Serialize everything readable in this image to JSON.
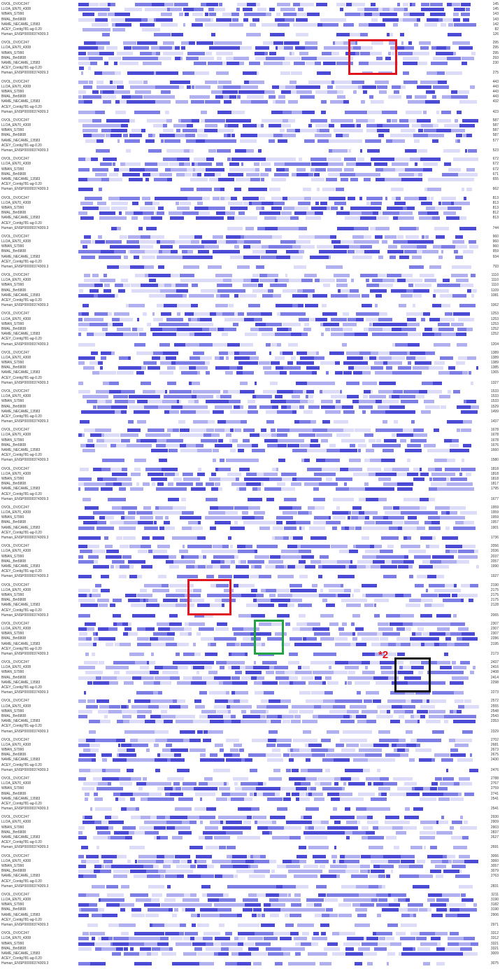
{
  "species_labels": [
    "OVOL_OVOC247",
    "LLOA_EN70_4308",
    "WBAN_S7990",
    "BMAL_Bm5808",
    "NAME_NECAME_13583",
    "ACEY_Contig781-ag-0.20",
    "Human_ENSP00000374309.3"
  ],
  "annotation": {
    "star_label": "*2"
  },
  "blocks": [
    {
      "ends": [
        "145",
        "145",
        "143",
        "143",
        "142",
        "82",
        "126"
      ]
    },
    {
      "ends": [
        "295",
        "295",
        "295",
        "293",
        "230",
        "",
        "275"
      ]
    },
    {
      "ends": [
        "443",
        "443",
        "443",
        "443",
        "432",
        "",
        "423"
      ]
    },
    {
      "ends": [
        "587",
        "587",
        "587",
        "587",
        "577",
        "",
        "523"
      ]
    },
    {
      "ends": [
        "672",
        "672",
        "672",
        "671",
        "655",
        "",
        "662"
      ]
    },
    {
      "ends": [
        "813",
        "813",
        "813",
        "812",
        "813",
        "",
        "744"
      ]
    },
    {
      "ends": [
        "960",
        "960",
        "960",
        "959",
        "934",
        "",
        "793"
      ]
    },
    {
      "ends": [
        "1110",
        "1110",
        "1110",
        "1109",
        "1081",
        "",
        "1062"
      ]
    },
    {
      "ends": [
        "1253",
        "1253",
        "1253",
        "1252",
        "1252",
        "",
        "1204"
      ]
    },
    {
      "ends": [
        "1389",
        "1389",
        "1389",
        "1385",
        "1365",
        "",
        "1327"
      ]
    },
    {
      "ends": [
        "1533",
        "1533",
        "1533",
        "1529",
        "1499",
        "",
        "1437"
      ]
    },
    {
      "ends": [
        "1678",
        "1678",
        "1678",
        "1676",
        "1660",
        "",
        "1580"
      ]
    },
    {
      "ends": [
        "1818",
        "1818",
        "1818",
        "1817",
        "1795",
        "",
        "1677"
      ]
    },
    {
      "ends": [
        "1959",
        "1959",
        "1959",
        "1957",
        "1901",
        "",
        "1736"
      ]
    },
    {
      "ends": [
        "2056",
        "2036",
        "2037",
        "2057",
        "1990",
        "",
        "1927"
      ]
    },
    {
      "ends": [
        "2190",
        "2175",
        "2175",
        "2175",
        "2128",
        "",
        "2065"
      ]
    },
    {
      "ends": [
        "2307",
        "2307",
        "2307",
        "2286",
        "2195",
        "",
        "2173"
      ]
    },
    {
      "ends": [
        "2437",
        "2416",
        "2408",
        "2414",
        "2298",
        "",
        "2273"
      ]
    },
    {
      "ends": [
        "2572",
        "2555",
        "2548",
        "2543",
        "2353",
        "",
        "2329"
      ]
    },
    {
      "ends": [
        "2702",
        "2681",
        "2673",
        "2675",
        "2430",
        "",
        "2476"
      ]
    },
    {
      "ends": [
        "2788",
        "2767",
        "2759",
        "2741",
        "2541",
        "",
        "2541"
      ]
    },
    {
      "ends": [
        "2930",
        "2909",
        "2903",
        "2837",
        "2627",
        "",
        "2691"
      ]
    },
    {
      "ends": [
        "3066",
        "3060",
        "3057",
        "3079",
        "2763",
        "",
        "2831"
      ]
    },
    {
      "ends": [
        "3211",
        "3190",
        "3182",
        "3190",
        "2906",
        "",
        "2971"
      ]
    },
    {
      "ends": [
        "3312",
        "3312",
        "3321",
        "3321",
        "3009",
        "",
        "3075"
      ]
    }
  ]
}
